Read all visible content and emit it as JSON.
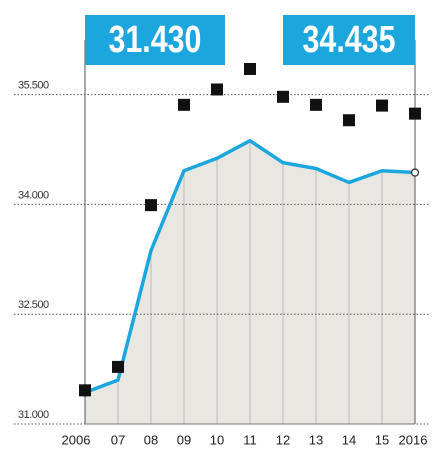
{
  "chart_data": {
    "type": "line",
    "categories": [
      "2006",
      "07",
      "08",
      "09",
      "10",
      "11",
      "12",
      "13",
      "14",
      "15",
      "2016"
    ],
    "series": [
      {
        "color": "#1ba6de",
        "marker": "line-area",
        "values": [
          31430,
          31600,
          33370,
          34460,
          34630,
          34870,
          34570,
          34490,
          34300,
          34460,
          34435
        ]
      },
      {
        "color": "#111111",
        "marker": "square",
        "values": [
          31460,
          31780,
          33990,
          35360,
          35570,
          35850,
          35470,
          35360,
          35150,
          35350,
          35240
        ]
      }
    ],
    "annotations": [
      {
        "text": "31.430"
      },
      {
        "text": "34.435"
      }
    ],
    "ylim": [
      31000,
      36000
    ],
    "yticks": [
      {
        "value": 31000,
        "label": "31.000"
      },
      {
        "value": 32500,
        "label": "32.500"
      },
      {
        "value": 34000,
        "label": "34.000"
      },
      {
        "value": 35500,
        "label": "35.500"
      }
    ],
    "grid": true
  }
}
